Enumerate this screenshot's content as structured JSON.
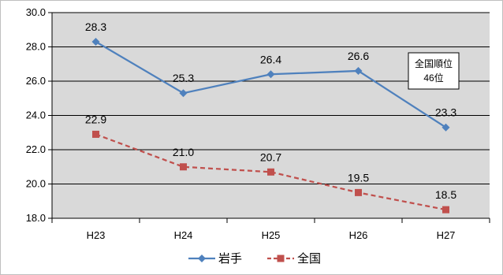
{
  "chart_data": {
    "type": "line",
    "categories": [
      "H23",
      "H24",
      "H25",
      "H26",
      "H27"
    ],
    "series": [
      {
        "name": "岩手",
        "values": [
          28.3,
          25.3,
          26.4,
          26.6,
          23.3
        ],
        "color": "#4f81bd",
        "dash": "solid",
        "marker": "diamond"
      },
      {
        "name": "全国",
        "values": [
          22.9,
          21.0,
          20.7,
          19.5,
          18.5
        ],
        "color": "#c0504d",
        "dash": "dashed",
        "marker": "square"
      }
    ],
    "ylim": [
      18.0,
      30.0
    ],
    "yticks": [
      18.0,
      20.0,
      22.0,
      24.0,
      26.0,
      28.0,
      30.0
    ],
    "grid": true,
    "legend_position": "bottom",
    "plot_background": "#d9d9d9",
    "annotation": {
      "line1": "全国順位",
      "line2": "46位"
    }
  }
}
